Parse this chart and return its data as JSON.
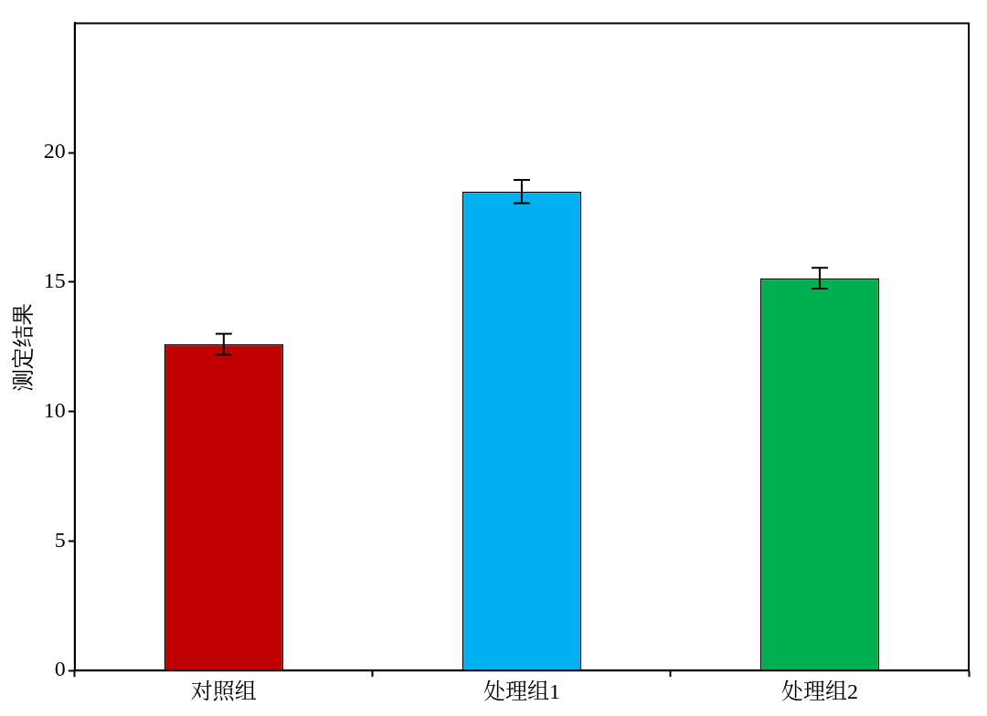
{
  "chart_data": {
    "type": "bar",
    "ylabel": "测定结果",
    "categories": [
      "对照组",
      "处理组1",
      "处理组2"
    ],
    "values": [
      12.6,
      18.5,
      15.15
    ],
    "colors": [
      "#c00000",
      "#00b0f0",
      "#00b050"
    ],
    "errors": [
      0.4,
      0.45,
      0.4
    ],
    "ylim": [
      0,
      25
    ],
    "yticks": [
      0,
      5,
      10,
      15,
      20
    ],
    "grid": false,
    "legend": false
  }
}
